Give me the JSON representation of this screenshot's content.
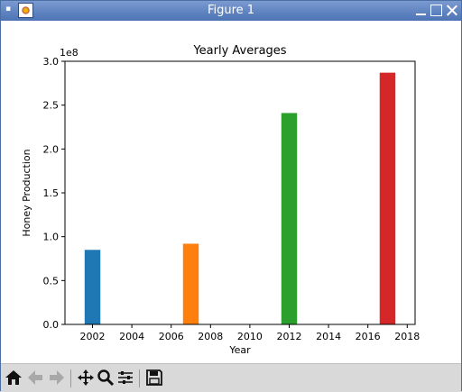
{
  "window": {
    "title": "Figure 1"
  },
  "toolbar": {
    "buttons": [
      {
        "name": "home-button",
        "icon": "home-icon"
      },
      {
        "name": "back-button",
        "icon": "arrow-left-icon"
      },
      {
        "name": "forward-button",
        "icon": "arrow-right-icon"
      },
      {
        "name": "pan-button",
        "icon": "move-icon"
      },
      {
        "name": "zoom-button",
        "icon": "magnifier-icon"
      },
      {
        "name": "configure-subplots-button",
        "icon": "sliders-icon"
      },
      {
        "name": "save-button",
        "icon": "floppy-disk-icon"
      }
    ]
  },
  "chart_data": {
    "type": "bar",
    "title": "Yearly Averages",
    "xlabel": "Year",
    "ylabel": "Honey Production",
    "y_offset_label": "1e8",
    "xlim": [
      2000.6,
      2018.4
    ],
    "ylim": [
      0,
      3.0
    ],
    "x_ticks": [
      2002,
      2004,
      2006,
      2008,
      2010,
      2012,
      2014,
      2016,
      2018
    ],
    "y_ticks": [
      0.0,
      0.5,
      1.0,
      1.5,
      2.0,
      2.5,
      3.0
    ],
    "y_tick_labels": [
      "0.0",
      "0.5",
      "1.0",
      "1.5",
      "2.0",
      "2.5",
      "3.0"
    ],
    "bar_width": 0.8,
    "grid": false,
    "series": [
      {
        "x": 2002,
        "value": 0.85,
        "color": "#1f77b4"
      },
      {
        "x": 2007,
        "value": 0.92,
        "color": "#ff7f0e"
      },
      {
        "x": 2012,
        "value": 2.41,
        "color": "#2ca02c"
      },
      {
        "x": 2017,
        "value": 2.87,
        "color": "#d62728"
      }
    ]
  }
}
